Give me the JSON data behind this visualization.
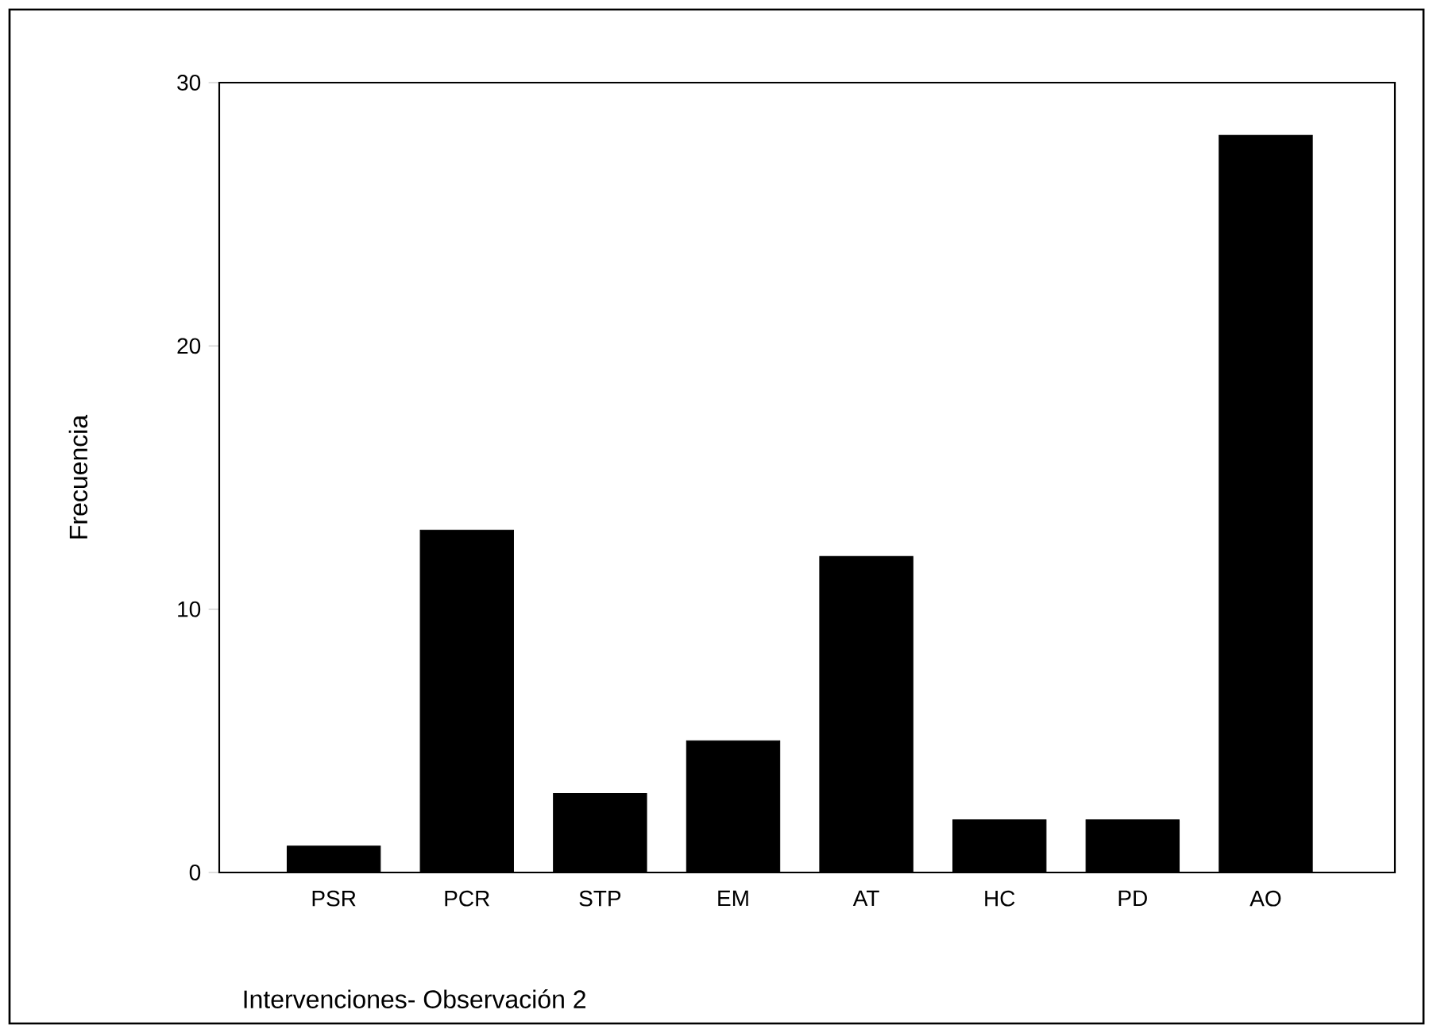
{
  "chart_data": {
    "type": "bar",
    "xlabel": "Intervenciones- Observación 2",
    "ylabel": "Frecuencia",
    "categories": [
      "PSR",
      "PCR",
      "STP",
      "EM",
      "AT",
      "HC",
      "PD",
      "AO"
    ],
    "values": [
      1,
      13,
      3,
      5,
      12,
      2,
      2,
      28
    ],
    "color": "#000000",
    "ylim": [
      0,
      30
    ],
    "yticks": [
      0,
      10,
      20,
      30
    ],
    "grid": false
  }
}
